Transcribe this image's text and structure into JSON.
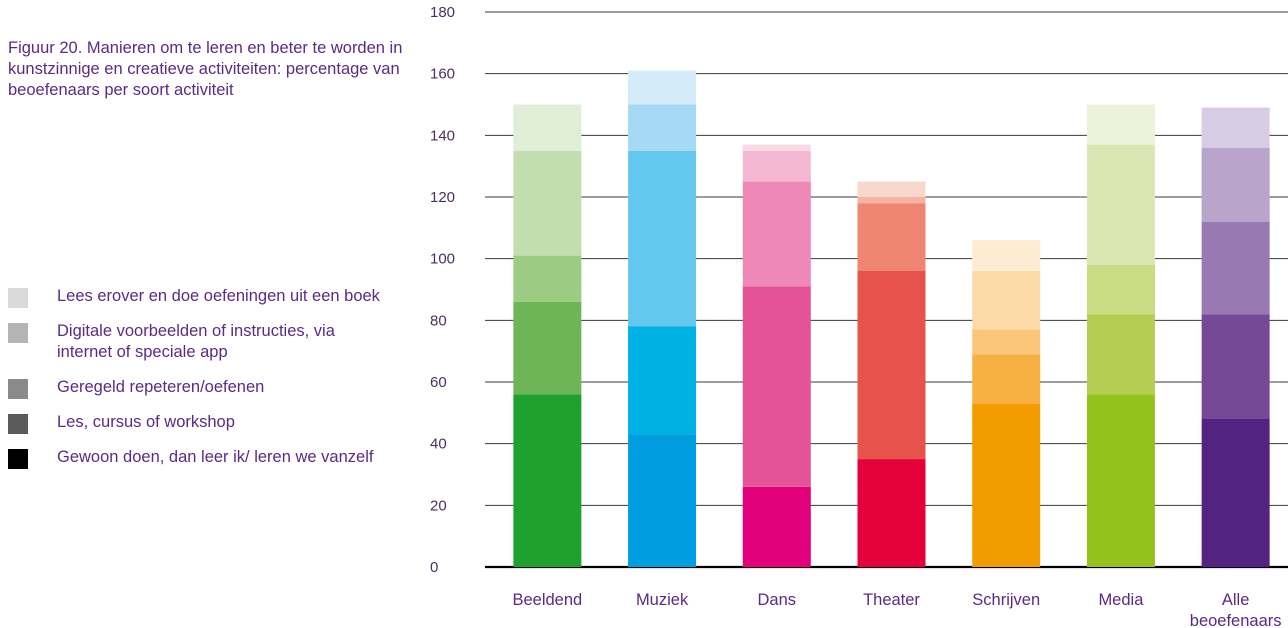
{
  "caption": "Figuur 20. Manieren om te leren en beter te worden in kunstzinnige en creatieve activiteiten: percentage van beoefenaars per soort activiteit",
  "legend": [
    {
      "label": "Lees erover en doe oefeningen uit een boek",
      "color": "#dadada"
    },
    {
      "label": "Digitale voorbeelden of instructies, via internet of speciale app",
      "color": "#b4b4b4"
    },
    {
      "label": "Geregeld repeteren/oefenen",
      "color": "#8a8a8a"
    },
    {
      "label": "Les, cursus of workshop",
      "color": "#5a5a5a"
    },
    {
      "label": "Gewoon doen, dan leer ik/ leren we vanzelf",
      "color": "#000000"
    }
  ],
  "chart_data": {
    "type": "bar",
    "stacked": true,
    "title": "Figuur 20. Manieren om te leren en beter te worden in kunstzinnige en creatieve activiteiten: percentage van beoefenaars per soort activiteit",
    "categories": [
      [
        "Beeldend"
      ],
      [
        "Muziek"
      ],
      [
        "Dans"
      ],
      [
        "Theater"
      ],
      [
        "Schrijven"
      ],
      [
        "Media"
      ],
      [
        "Alle",
        "beoefenaars"
      ]
    ],
    "series": [
      {
        "name": "Gewoon doen, dan leer ik/ leren we vanzelf",
        "values": [
          56,
          43,
          26,
          35,
          53,
          56,
          48
        ]
      },
      {
        "name": "Les, cursus of workshop",
        "values": [
          30,
          35,
          65,
          61,
          16,
          26,
          34
        ]
      },
      {
        "name": "Geregeld repeteren/oefenen",
        "values": [
          15,
          57,
          34,
          22,
          8,
          16,
          30
        ]
      },
      {
        "name": "Digitale voorbeelden of instructies, via internet of speciale app",
        "values": [
          34,
          15,
          10,
          2,
          19,
          39,
          24
        ]
      },
      {
        "name": "Lees erover en doe oefeningen uit een boek",
        "values": [
          15,
          11,
          2,
          5,
          10,
          13,
          13
        ]
      }
    ],
    "bar_colors": [
      [
        "#1fa12f",
        "#6db556",
        "#9ccb83",
        "#c2deae",
        "#e1eed7"
      ],
      [
        "#009de0",
        "#00b1e6",
        "#64c7ee",
        "#a6daf4",
        "#d4ecfa"
      ],
      [
        "#e2007a",
        "#e55397",
        "#ee89b7",
        "#f4b8d3",
        "#f8dae7"
      ],
      [
        "#e4003a",
        "#e6534d",
        "#ee8673",
        "#f4b4a0",
        "#f8d8cc"
      ],
      [
        "#f39c00",
        "#f7b042",
        "#f9c67a",
        "#fcdba8",
        "#fdecd2"
      ],
      [
        "#95c11f",
        "#b5cd53",
        "#c9dc84",
        "#dbe7b2",
        "#ecf3d8"
      ],
      [
        "#542281",
        "#764896",
        "#9879b1",
        "#b9a4cc",
        "#d8cde4"
      ]
    ],
    "y_ticks": [
      0,
      20,
      40,
      60,
      80,
      100,
      120,
      140,
      160,
      180
    ],
    "ylim": [
      0,
      180
    ],
    "grid": true,
    "xlabel": "",
    "ylabel": ""
  }
}
